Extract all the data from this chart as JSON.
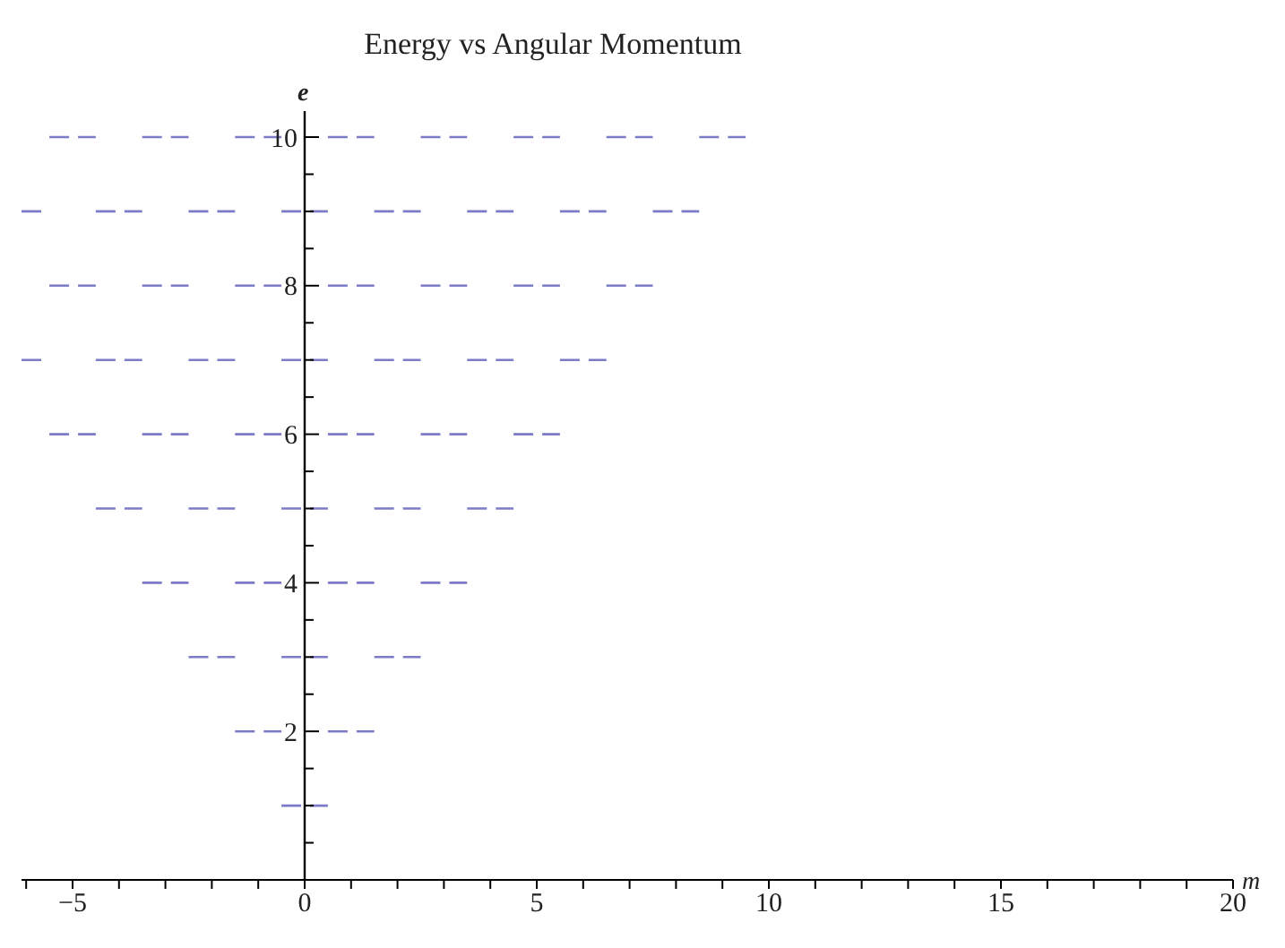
{
  "chart_data": {
    "type": "line",
    "title": "Energy vs Angular Momentum",
    "xlabel": "m",
    "ylabel": "e",
    "line_style": "dashed",
    "xlim": [
      -6.1,
      20
    ],
    "xticks": [
      {
        "value": -6,
        "label": null
      },
      {
        "value": -5,
        "label": "−5"
      },
      {
        "value": -4,
        "label": null
      },
      {
        "value": -3,
        "label": null
      },
      {
        "value": -2,
        "label": null
      },
      {
        "value": -1,
        "label": null
      },
      0,
      {
        "value": 1,
        "label": null
      },
      {
        "value": 2,
        "label": null
      },
      {
        "value": 3,
        "label": null
      },
      {
        "value": 4,
        "label": null
      },
      5,
      {
        "value": 6,
        "label": null
      },
      {
        "value": 7,
        "label": null
      },
      {
        "value": 8,
        "label": null
      },
      {
        "value": 9,
        "label": null
      },
      10,
      {
        "value": 11,
        "label": null
      },
      {
        "value": 12,
        "label": null
      },
      {
        "value": 13,
        "label": null
      },
      {
        "value": 14,
        "label": null
      },
      15,
      {
        "value": 16,
        "label": null
      },
      {
        "value": 17,
        "label": null
      },
      {
        "value": 18,
        "label": null
      },
      {
        "value": 19,
        "label": null
      },
      20
    ],
    "ylim": [
      0,
      10.35
    ],
    "yticks": [
      {
        "value": 0.5,
        "label": null
      },
      {
        "value": 1,
        "label": null
      },
      {
        "value": 1.5,
        "label": null
      },
      2,
      {
        "value": 2.5,
        "label": null
      },
      {
        "value": 3,
        "label": null
      },
      {
        "value": 3.5,
        "label": null
      },
      4,
      {
        "value": 4.5,
        "label": null
      },
      {
        "value": 5,
        "label": null
      },
      {
        "value": 5.5,
        "label": null
      },
      6,
      {
        "value": 6.5,
        "label": null
      },
      {
        "value": 7,
        "label": null
      },
      {
        "value": 7.5,
        "label": null
      },
      8,
      {
        "value": 8.5,
        "label": null
      },
      {
        "value": 9,
        "label": null
      },
      {
        "value": 9.5,
        "label": null
      },
      10
    ],
    "series": [
      {
        "color": "#7b7bc8",
        "x": [
          -0.5,
          0.5
        ],
        "values": [
          1,
          1
        ]
      },
      {
        "color": "#7b7bc8",
        "x": [
          -1.5,
          -0.5,
          0,
          0.5,
          1.5
        ],
        "values": [
          2,
          2,
          null,
          2,
          2
        ]
      },
      {
        "color": "#7b7bc8",
        "x": [
          -2.5,
          -1.5,
          -1,
          -0.5,
          0.5,
          1,
          1.5,
          2.5
        ],
        "values": [
          3,
          3,
          null,
          3,
          3,
          null,
          3,
          3
        ]
      },
      {
        "color": "#7b7bc8",
        "x": [
          -3.5,
          -2.5,
          -2,
          -1.5,
          -0.5,
          0,
          0.5,
          1.5,
          2,
          2.5,
          3.5
        ],
        "values": [
          4,
          4,
          null,
          4,
          4,
          null,
          4,
          4,
          null,
          4,
          4
        ]
      },
      {
        "color": "#7b7bc8",
        "x": [
          -4.5,
          -3.5,
          -3,
          -2.5,
          -1.5,
          -1,
          -0.5,
          0.5,
          1,
          1.5,
          2.5,
          3,
          3.5,
          4.5
        ],
        "values": [
          5,
          5,
          null,
          5,
          5,
          null,
          5,
          5,
          null,
          5,
          5,
          null,
          5,
          5
        ]
      },
      {
        "color": "#7b7bc8",
        "x": [
          -5.5,
          -4.5,
          -4,
          -3.5,
          -2.5,
          -2,
          -1.5,
          -0.5,
          0,
          0.5,
          1.5,
          2,
          2.5,
          3.5,
          4,
          4.5,
          5.5
        ],
        "values": [
          6,
          6,
          null,
          6,
          6,
          null,
          6,
          6,
          null,
          6,
          6,
          null,
          6,
          6,
          null,
          6,
          6
        ]
      },
      {
        "color": "#7b7bc8",
        "x": [
          -6.1,
          -5.5,
          -5,
          -4.5,
          -3.5,
          -3,
          -2.5,
          -1.5,
          -1,
          -0.5,
          0.5,
          1,
          1.5,
          2.5,
          3,
          3.5,
          4.5,
          5,
          5.5,
          6.5
        ],
        "values": [
          7,
          7,
          null,
          7,
          7,
          null,
          7,
          7,
          null,
          7,
          7,
          null,
          7,
          7,
          null,
          7,
          7,
          null,
          7,
          7
        ]
      },
      {
        "color": "#7b7bc8",
        "x": [
          -5.5,
          -4.5,
          -4,
          -3.5,
          -2.5,
          -2,
          -1.5,
          -0.5,
          0,
          0.5,
          1.5,
          2,
          2.5,
          3.5,
          4,
          4.5,
          5.5,
          6,
          6.5,
          7.5
        ],
        "values": [
          8,
          8,
          null,
          8,
          8,
          null,
          8,
          8,
          null,
          8,
          8,
          null,
          8,
          8,
          null,
          8,
          8,
          null,
          8,
          8
        ]
      },
      {
        "color": "#7b7bc8",
        "x": [
          -6.1,
          -5.5,
          -5,
          -4.5,
          -3.5,
          -3,
          -2.5,
          -1.5,
          -1,
          -0.5,
          0.5,
          1,
          1.5,
          2.5,
          3,
          3.5,
          4.5,
          5,
          5.5,
          6.5,
          7,
          7.5,
          8.5
        ],
        "values": [
          9,
          9,
          null,
          9,
          9,
          null,
          9,
          9,
          null,
          9,
          9,
          null,
          9,
          9,
          null,
          9,
          9,
          null,
          9,
          9,
          null,
          9,
          9
        ]
      },
      {
        "color": "#7b7bc8",
        "x": [
          -5.5,
          -4.5,
          -4,
          -3.5,
          -2.5,
          -2,
          -1.5,
          -0.5,
          0,
          0.5,
          1.5,
          2,
          2.5,
          3.5,
          4,
          4.5,
          5.5,
          6,
          6.5,
          7.5,
          8,
          8.5,
          9.5
        ],
        "values": [
          10,
          10,
          null,
          10,
          10,
          null,
          10,
          10,
          null,
          10,
          10,
          null,
          10,
          10,
          null,
          10,
          10,
          null,
          10,
          10,
          null,
          10,
          10
        ]
      }
    ]
  }
}
